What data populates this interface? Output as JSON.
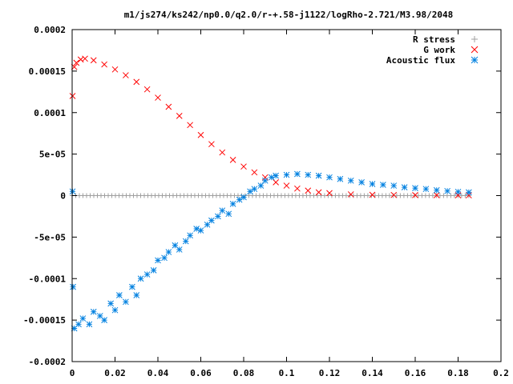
{
  "chart_data": {
    "type": "scatter",
    "title": "m1/js274/ks242/np0.0/q2.0/r-+.58-j1122/logRho-2.721/M3.98/2048",
    "xlabel": "",
    "ylabel": "",
    "xlim": [
      0,
      0.2
    ],
    "ylim": [
      -0.0002,
      0.0002
    ],
    "x_ticks": [
      "0",
      "0.02",
      "0.04",
      "0.06",
      "0.08",
      "0.1",
      "0.12",
      "0.14",
      "0.16",
      "0.18",
      "0.2"
    ],
    "y_ticks": [
      "0.0002",
      "0.00015",
      "0.0001",
      "5e-05",
      "0",
      "-5e-05",
      "-0.0001",
      "-0.00015",
      "-0.0002"
    ],
    "grid": false,
    "legend_position": "top-right",
    "series": [
      {
        "name": "R stress",
        "marker": "plus",
        "color": "#a0a0a0",
        "x_range": [
          0,
          0.185
        ],
        "y_value": 0
      },
      {
        "name": "G work",
        "marker": "cross",
        "color": "#ff0000",
        "points": [
          [
            0.0002,
            0.00012
          ],
          [
            0.001,
            0.000155
          ],
          [
            0.002,
            0.00016
          ],
          [
            0.004,
            0.000164
          ],
          [
            0.006,
            0.000165
          ],
          [
            0.01,
            0.000163
          ],
          [
            0.015,
            0.000158
          ],
          [
            0.02,
            0.000152
          ],
          [
            0.025,
            0.000145
          ],
          [
            0.03,
            0.000137
          ],
          [
            0.035,
            0.000128
          ],
          [
            0.04,
            0.000118
          ],
          [
            0.045,
            0.000107
          ],
          [
            0.05,
            9.6e-05
          ],
          [
            0.055,
            8.5e-05
          ],
          [
            0.06,
            7.3e-05
          ],
          [
            0.065,
            6.2e-05
          ],
          [
            0.07,
            5.2e-05
          ],
          [
            0.075,
            4.3e-05
          ],
          [
            0.08,
            3.5e-05
          ],
          [
            0.085,
            2.8e-05
          ],
          [
            0.09,
            2.2e-05
          ],
          [
            0.095,
            1.6e-05
          ],
          [
            0.1,
            1.2e-05
          ],
          [
            0.105,
            8.5e-06
          ],
          [
            0.11,
            6e-06
          ],
          [
            0.115,
            4e-06
          ],
          [
            0.12,
            3e-06
          ],
          [
            0.13,
            1.5e-06
          ],
          [
            0.14,
            1e-06
          ],
          [
            0.15,
            8e-07
          ],
          [
            0.16,
            6e-07
          ],
          [
            0.17,
            5e-07
          ],
          [
            0.18,
            4e-07
          ],
          [
            0.185,
            3e-07
          ]
        ]
      },
      {
        "name": "Acoustic flux",
        "marker": "star",
        "color": "#0080e0",
        "points": [
          [
            0.0002,
            5e-06
          ],
          [
            0.0004,
            -0.00011
          ],
          [
            0.001,
            -0.00016
          ],
          [
            0.003,
            -0.000155
          ],
          [
            0.005,
            -0.000148
          ],
          [
            0.008,
            -0.000155
          ],
          [
            0.01,
            -0.00014
          ],
          [
            0.013,
            -0.000145
          ],
          [
            0.015,
            -0.00015
          ],
          [
            0.018,
            -0.00013
          ],
          [
            0.02,
            -0.000138
          ],
          [
            0.022,
            -0.00012
          ],
          [
            0.025,
            -0.000128
          ],
          [
            0.028,
            -0.00011
          ],
          [
            0.03,
            -0.00012
          ],
          [
            0.032,
            -0.0001
          ],
          [
            0.035,
            -9.5e-05
          ],
          [
            0.038,
            -9e-05
          ],
          [
            0.04,
            -7.8e-05
          ],
          [
            0.043,
            -7.5e-05
          ],
          [
            0.045,
            -6.8e-05
          ],
          [
            0.048,
            -6e-05
          ],
          [
            0.05,
            -6.5e-05
          ],
          [
            0.053,
            -5.5e-05
          ],
          [
            0.055,
            -4.8e-05
          ],
          [
            0.058,
            -4e-05
          ],
          [
            0.06,
            -4.2e-05
          ],
          [
            0.063,
            -3.5e-05
          ],
          [
            0.065,
            -3e-05
          ],
          [
            0.068,
            -2.5e-05
          ],
          [
            0.07,
            -1.8e-05
          ],
          [
            0.073,
            -2.2e-05
          ],
          [
            0.075,
            -1e-05
          ],
          [
            0.078,
            -5e-06
          ],
          [
            0.08,
            -2e-06
          ],
          [
            0.083,
            5e-06
          ],
          [
            0.085,
            8e-06
          ],
          [
            0.088,
            1.2e-05
          ],
          [
            0.09,
            1.8e-05
          ],
          [
            0.093,
            2.2e-05
          ],
          [
            0.095,
            2.4e-05
          ],
          [
            0.1,
            2.5e-05
          ],
          [
            0.105,
            2.6e-05
          ],
          [
            0.11,
            2.5e-05
          ],
          [
            0.115,
            2.4e-05
          ],
          [
            0.12,
            2.2e-05
          ],
          [
            0.125,
            2e-05
          ],
          [
            0.13,
            1.8e-05
          ],
          [
            0.135,
            1.6e-05
          ],
          [
            0.14,
            1.4e-05
          ],
          [
            0.145,
            1.3e-05
          ],
          [
            0.15,
            1.2e-05
          ],
          [
            0.155,
            1e-05
          ],
          [
            0.16,
            9e-06
          ],
          [
            0.165,
            8e-06
          ],
          [
            0.17,
            6.5e-06
          ],
          [
            0.175,
            5.5e-06
          ],
          [
            0.18,
            4.5e-06
          ],
          [
            0.185,
            4e-06
          ]
        ]
      }
    ]
  }
}
